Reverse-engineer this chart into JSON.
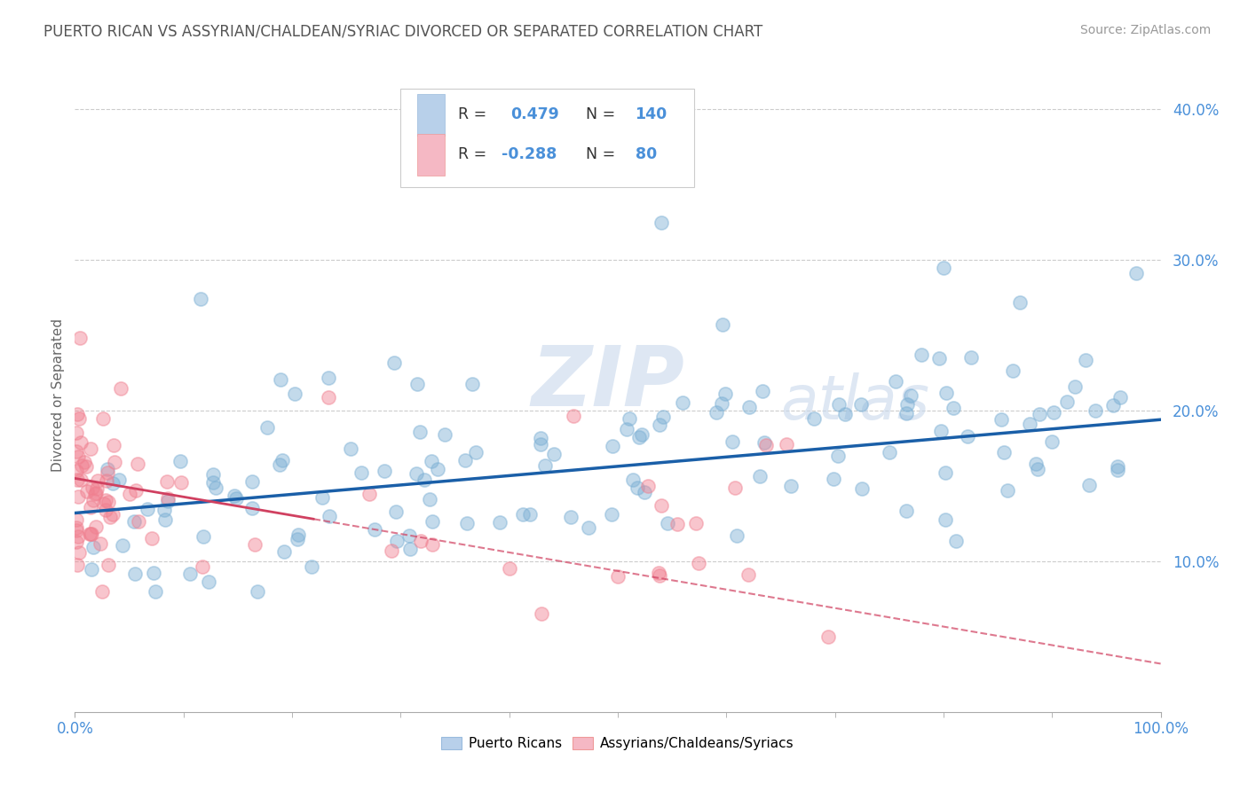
{
  "title": "PUERTO RICAN VS ASSYRIAN/CHALDEAN/SYRIAC DIVORCED OR SEPARATED CORRELATION CHART",
  "source_text": "Source: ZipAtlas.com",
  "ylabel": "Divorced or Separated",
  "xmin": 0.0,
  "xmax": 1.0,
  "ymin": 0.0,
  "ymax": 0.42,
  "x_tick_labels": [
    "0.0%",
    "100.0%"
  ],
  "y_tick_labels": [
    "10.0%",
    "20.0%",
    "30.0%",
    "40.0%"
  ],
  "y_tick_values": [
    0.1,
    0.2,
    0.3,
    0.4
  ],
  "blue_R": 0.479,
  "blue_N": 140,
  "pink_R": -0.288,
  "pink_N": 80,
  "blue_scatter_color": "#7bafd4",
  "pink_scatter_color": "#f08090",
  "blue_line_color": "#1a5fa8",
  "pink_line_color": "#d04060",
  "legend_blue_fill": "#b8d0ea",
  "legend_pink_fill": "#f5b8c4",
  "title_color": "#555555",
  "axis_color": "#4a90d9",
  "watermark_zip": "ZIP",
  "watermark_atlas": "atlas",
  "background_color": "#ffffff",
  "grid_color": "#cccccc",
  "blue_line_x0": 0.0,
  "blue_line_x1": 1.0,
  "blue_line_y0": 0.132,
  "blue_line_y1": 0.194,
  "pink_line_solid_x0": 0.0,
  "pink_line_solid_x1": 0.22,
  "pink_line_solid_y0": 0.155,
  "pink_line_solid_y1": 0.128,
  "pink_line_dash_x0": 0.22,
  "pink_line_dash_x1": 1.0,
  "pink_line_dash_y0": 0.128,
  "pink_line_dash_y1": 0.032
}
